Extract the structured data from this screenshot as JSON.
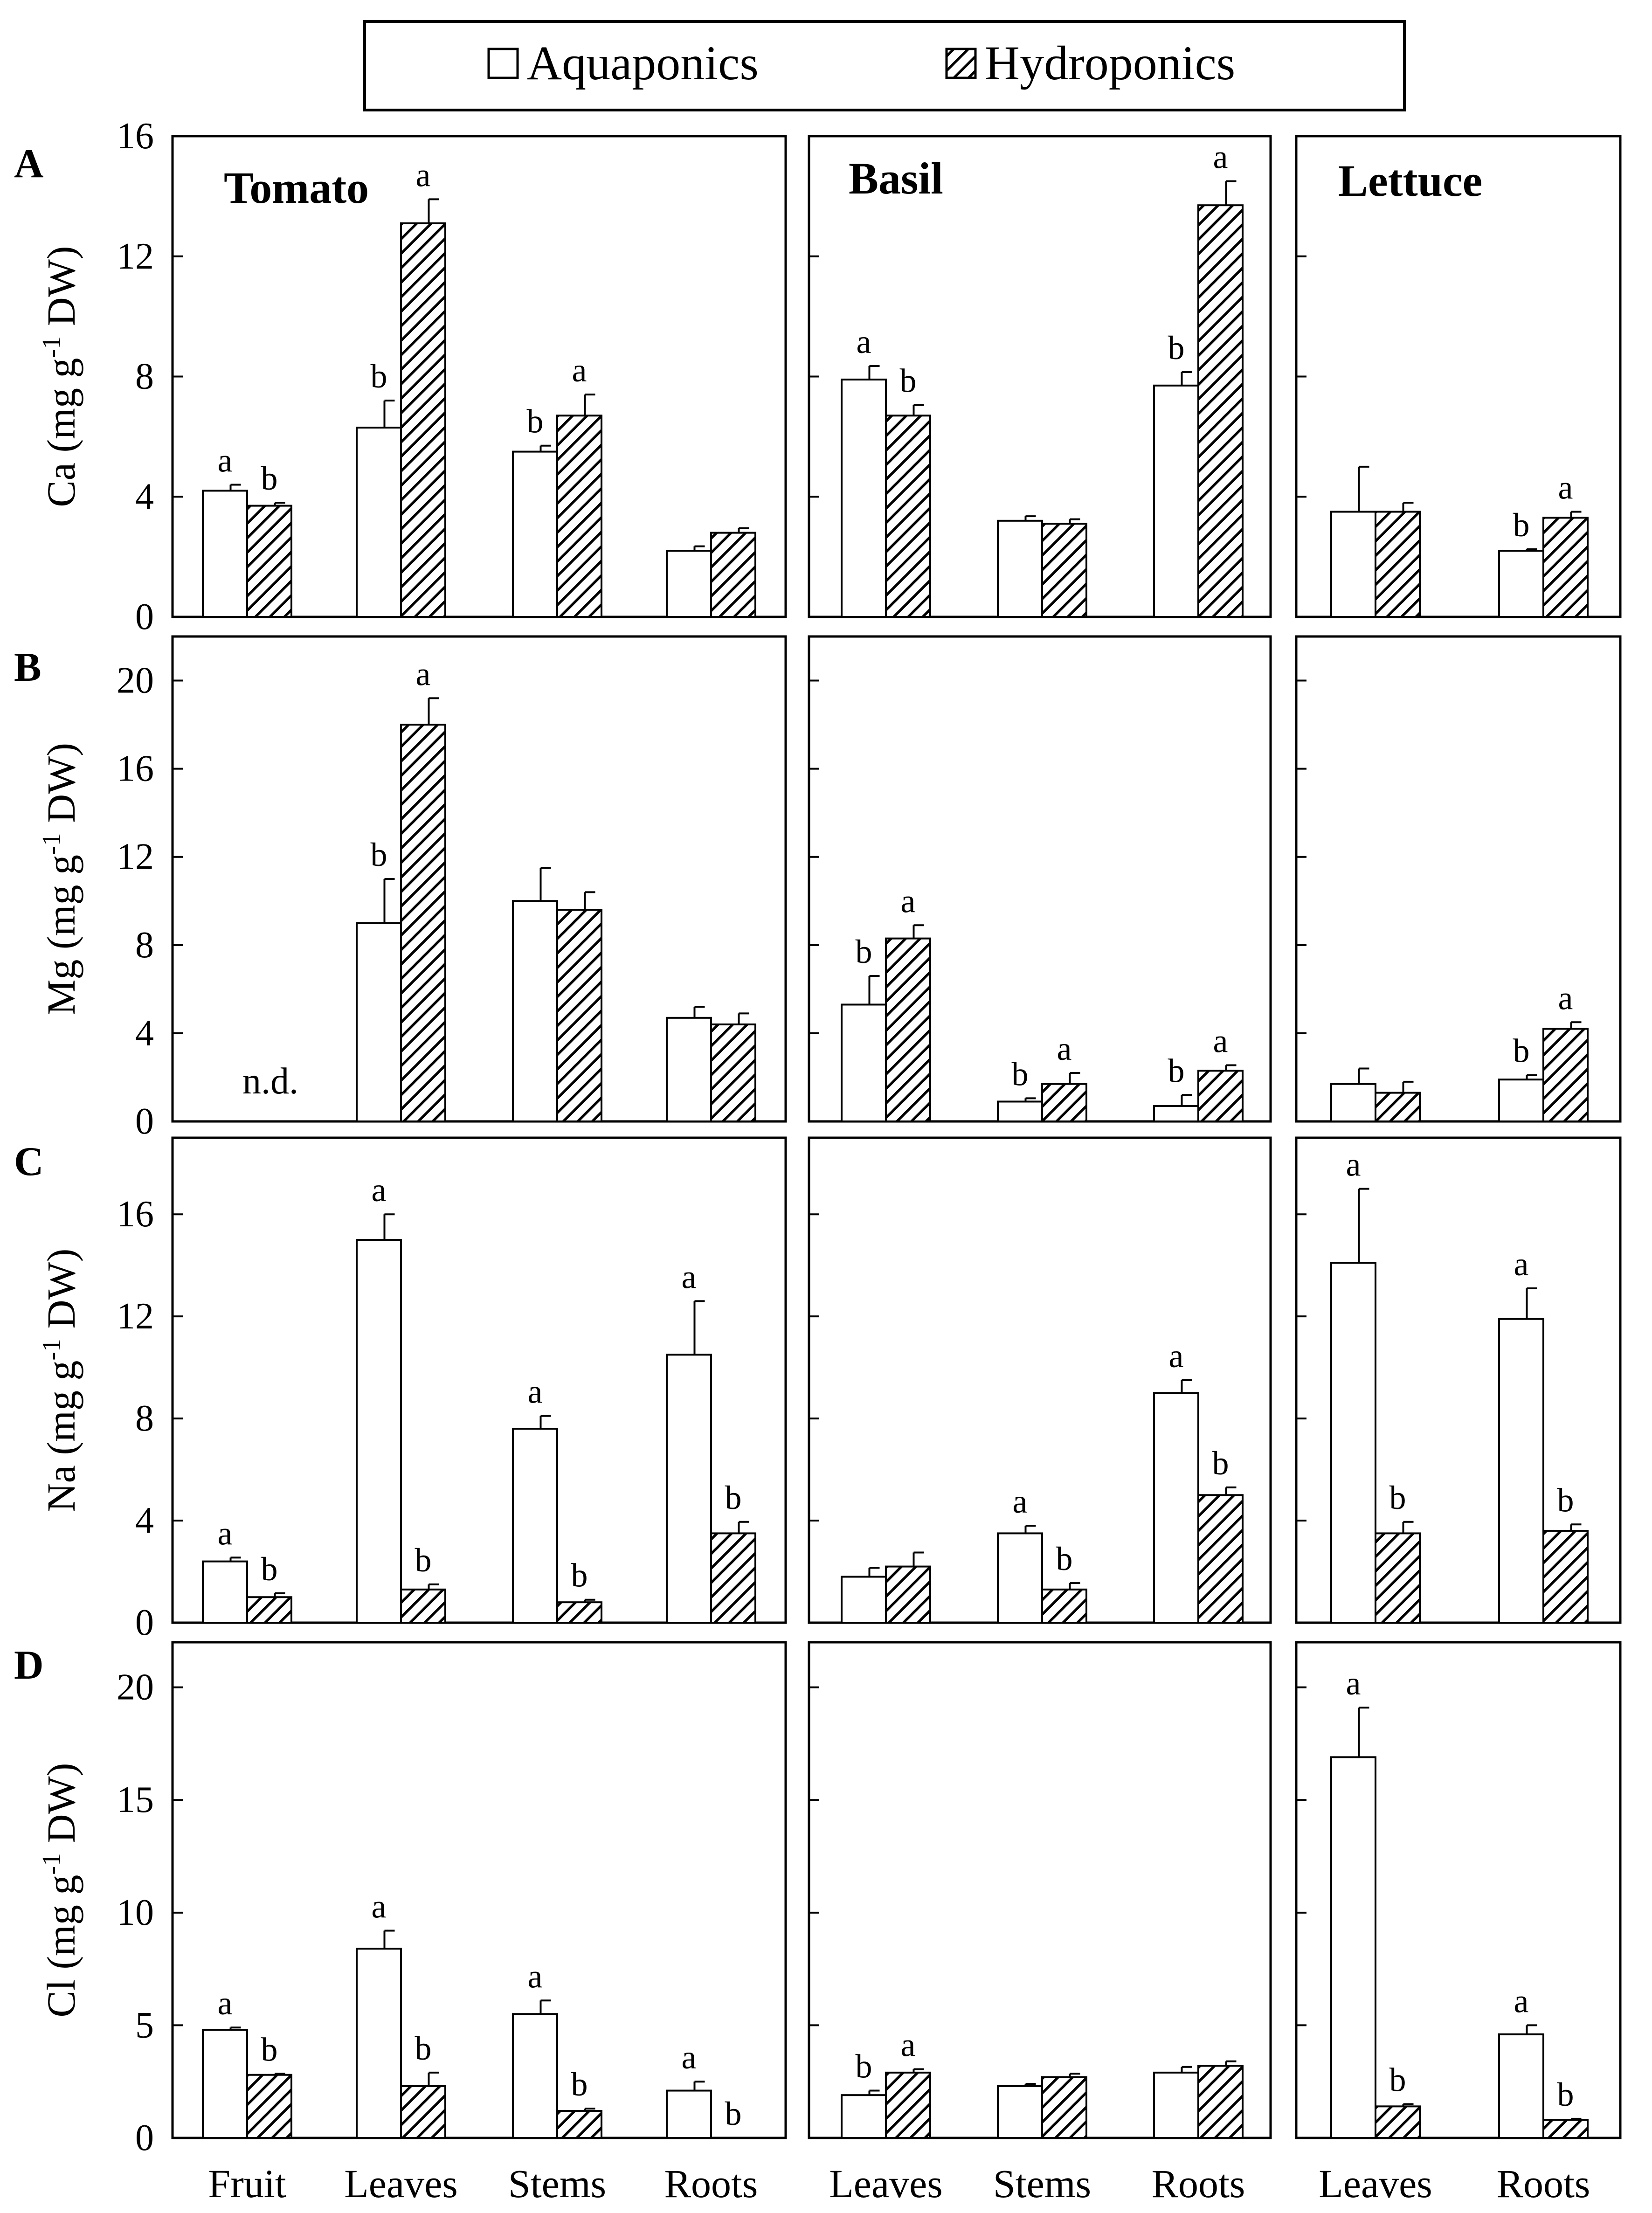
{
  "legend": {
    "series": [
      {
        "name": "Aquaponics",
        "pattern": "open"
      },
      {
        "name": "Hydroponics",
        "pattern": "hatched"
      }
    ]
  },
  "panels": {
    "tomato": {
      "title": "Tomato"
    },
    "basil": {
      "title": "Basil"
    },
    "lettuce": {
      "title": "Lettuce"
    }
  },
  "categories": {
    "tomato": [
      "Fruit",
      "Leaves",
      "Stems",
      "Roots"
    ],
    "basil": [
      "Leaves",
      "Stems",
      "Roots"
    ],
    "lettuce": [
      "Leaves",
      "Roots"
    ]
  },
  "nd_label": "n.d.",
  "colors": {
    "aquaponics_fill": "#ffffff",
    "hatch_line": "#000000",
    "axis": "#000000"
  },
  "chart_data": [
    {
      "type": "bar",
      "row": "A",
      "ylabel": "Ca (mg g-1 DW)",
      "ylim": [
        0,
        16
      ],
      "yticks": [
        0,
        4,
        8,
        12,
        16
      ],
      "groups": {
        "tomato": {
          "categories": [
            "Fruit",
            "Leaves",
            "Stems",
            "Roots"
          ],
          "aquaponics": {
            "values": [
              4.2,
              6.3,
              5.5,
              2.2
            ],
            "err": [
              0.2,
              0.9,
              0.2,
              0.15
            ],
            "sig": [
              "a",
              "b",
              "b",
              ""
            ]
          },
          "hydroponics": {
            "values": [
              3.7,
              13.1,
              6.7,
              2.8
            ],
            "err": [
              0.1,
              0.8,
              0.7,
              0.15
            ],
            "sig": [
              "b",
              "a",
              "a",
              ""
            ]
          }
        },
        "basil": {
          "categories": [
            "Leaves",
            "Stems",
            "Roots"
          ],
          "aquaponics": {
            "values": [
              7.9,
              3.2,
              7.7
            ],
            "err": [
              0.45,
              0.15,
              0.45
            ],
            "sig": [
              "a",
              "",
              "b"
            ]
          },
          "hydroponics": {
            "values": [
              6.7,
              3.1,
              13.7
            ],
            "err": [
              0.35,
              0.15,
              0.8
            ],
            "sig": [
              "b",
              "",
              "a"
            ]
          }
        },
        "lettuce": {
          "categories": [
            "Leaves",
            "Roots"
          ],
          "aquaponics": {
            "values": [
              3.5,
              2.2
            ],
            "err": [
              1.5,
              0.05
            ],
            "sig": [
              "",
              "b"
            ]
          },
          "hydroponics": {
            "values": [
              3.5,
              3.3
            ],
            "err": [
              0.3,
              0.2
            ],
            "sig": [
              "",
              "a"
            ]
          }
        }
      }
    },
    {
      "type": "bar",
      "row": "B",
      "ylabel": "Mg (mg g-1 DW)",
      "ylim": [
        0,
        22
      ],
      "yticks": [
        0,
        4,
        8,
        12,
        16,
        20
      ],
      "groups": {
        "tomato": {
          "categories": [
            "Fruit",
            "Leaves",
            "Stems",
            "Roots"
          ],
          "aquaponics": {
            "values": [
              null,
              9.0,
              10.0,
              4.7
            ],
            "err": [
              0,
              2.0,
              1.5,
              0.5
            ],
            "sig": [
              "",
              "b",
              "",
              ""
            ]
          },
          "hydroponics": {
            "values": [
              null,
              18.0,
              9.6,
              4.4
            ],
            "err": [
              0,
              1.2,
              0.8,
              0.5
            ],
            "sig": [
              "",
              "a",
              "",
              ""
            ]
          }
        },
        "basil": {
          "categories": [
            "Leaves",
            "Stems",
            "Roots"
          ],
          "aquaponics": {
            "values": [
              5.3,
              0.9,
              0.7
            ],
            "err": [
              1.3,
              0.15,
              0.5
            ],
            "sig": [
              "b",
              "b",
              "b"
            ]
          },
          "hydroponics": {
            "values": [
              8.3,
              1.7,
              2.3
            ],
            "err": [
              0.6,
              0.5,
              0.25
            ],
            "sig": [
              "a",
              "a",
              "a"
            ]
          }
        },
        "lettuce": {
          "categories": [
            "Leaves",
            "Roots"
          ],
          "aquaponics": {
            "values": [
              1.7,
              1.9
            ],
            "err": [
              0.7,
              0.2
            ],
            "sig": [
              "",
              "b"
            ]
          },
          "hydroponics": {
            "values": [
              1.3,
              4.2
            ],
            "err": [
              0.5,
              0.3
            ],
            "sig": [
              "",
              "a"
            ]
          }
        }
      }
    },
    {
      "type": "bar",
      "row": "C",
      "ylabel": "Na (mg g-1 DW)",
      "ylim": [
        0,
        19
      ],
      "yticks": [
        0,
        4,
        8,
        12,
        16
      ],
      "groups": {
        "tomato": {
          "categories": [
            "Fruit",
            "Leaves",
            "Stems",
            "Roots"
          ],
          "aquaponics": {
            "values": [
              2.4,
              15.0,
              7.6,
              10.5
            ],
            "err": [
              0.15,
              1.0,
              0.5,
              2.1
            ],
            "sig": [
              "a",
              "a",
              "a",
              "a"
            ]
          },
          "hydroponics": {
            "values": [
              1.0,
              1.3,
              0.8,
              3.5
            ],
            "err": [
              0.15,
              0.2,
              0.1,
              0.45
            ],
            "sig": [
              "b",
              "b",
              "b",
              "b"
            ]
          }
        },
        "basil": {
          "categories": [
            "Leaves",
            "Stems",
            "Roots"
          ],
          "aquaponics": {
            "values": [
              1.8,
              3.5,
              9.0
            ],
            "err": [
              0.35,
              0.3,
              0.5
            ],
            "sig": [
              "",
              "a",
              "a"
            ]
          },
          "hydroponics": {
            "values": [
              2.2,
              1.3,
              5.0
            ],
            "err": [
              0.55,
              0.25,
              0.3
            ],
            "sig": [
              "",
              "b",
              "b"
            ]
          }
        },
        "lettuce": {
          "categories": [
            "Leaves",
            "Roots"
          ],
          "aquaponics": {
            "values": [
              14.1,
              11.9
            ],
            "err": [
              2.9,
              1.2
            ],
            "sig": [
              "a",
              "a"
            ]
          },
          "hydroponics": {
            "values": [
              3.5,
              3.6
            ],
            "err": [
              0.45,
              0.25
            ],
            "sig": [
              "b",
              "b"
            ]
          }
        }
      }
    },
    {
      "type": "bar",
      "row": "D",
      "ylabel": "Cl (mg g-1 DW)",
      "ylim": [
        0,
        22
      ],
      "yticks": [
        0,
        5,
        10,
        15,
        20
      ],
      "groups": {
        "tomato": {
          "categories": [
            "Fruit",
            "Leaves",
            "Stems",
            "Roots"
          ],
          "aquaponics": {
            "values": [
              4.8,
              8.4,
              5.5,
              2.1
            ],
            "err": [
              0.1,
              0.8,
              0.6,
              0.4
            ],
            "sig": [
              "a",
              "a",
              "a",
              "a"
            ]
          },
          "hydroponics": {
            "values": [
              2.8,
              2.3,
              1.2,
              0.0
            ],
            "err": [
              0.05,
              0.6,
              0.1,
              0.0
            ],
            "sig": [
              "b",
              "b",
              "b",
              "b"
            ]
          }
        },
        "basil": {
          "categories": [
            "Leaves",
            "Stems",
            "Roots"
          ],
          "aquaponics": {
            "values": [
              1.9,
              2.3,
              2.9
            ],
            "err": [
              0.2,
              0.1,
              0.25
            ],
            "sig": [
              "b",
              "",
              ""
            ]
          },
          "hydroponics": {
            "values": [
              2.9,
              2.7,
              3.2
            ],
            "err": [
              0.15,
              0.15,
              0.2
            ],
            "sig": [
              "a",
              "",
              ""
            ]
          }
        },
        "lettuce": {
          "categories": [
            "Leaves",
            "Roots"
          ],
          "aquaponics": {
            "values": [
              16.9,
              4.6
            ],
            "err": [
              2.2,
              0.4
            ],
            "sig": [
              "a",
              "a"
            ]
          },
          "hydroponics": {
            "values": [
              1.4,
              0.8
            ],
            "err": [
              0.1,
              0.05
            ],
            "sig": [
              "b",
              "b"
            ]
          }
        }
      }
    }
  ]
}
